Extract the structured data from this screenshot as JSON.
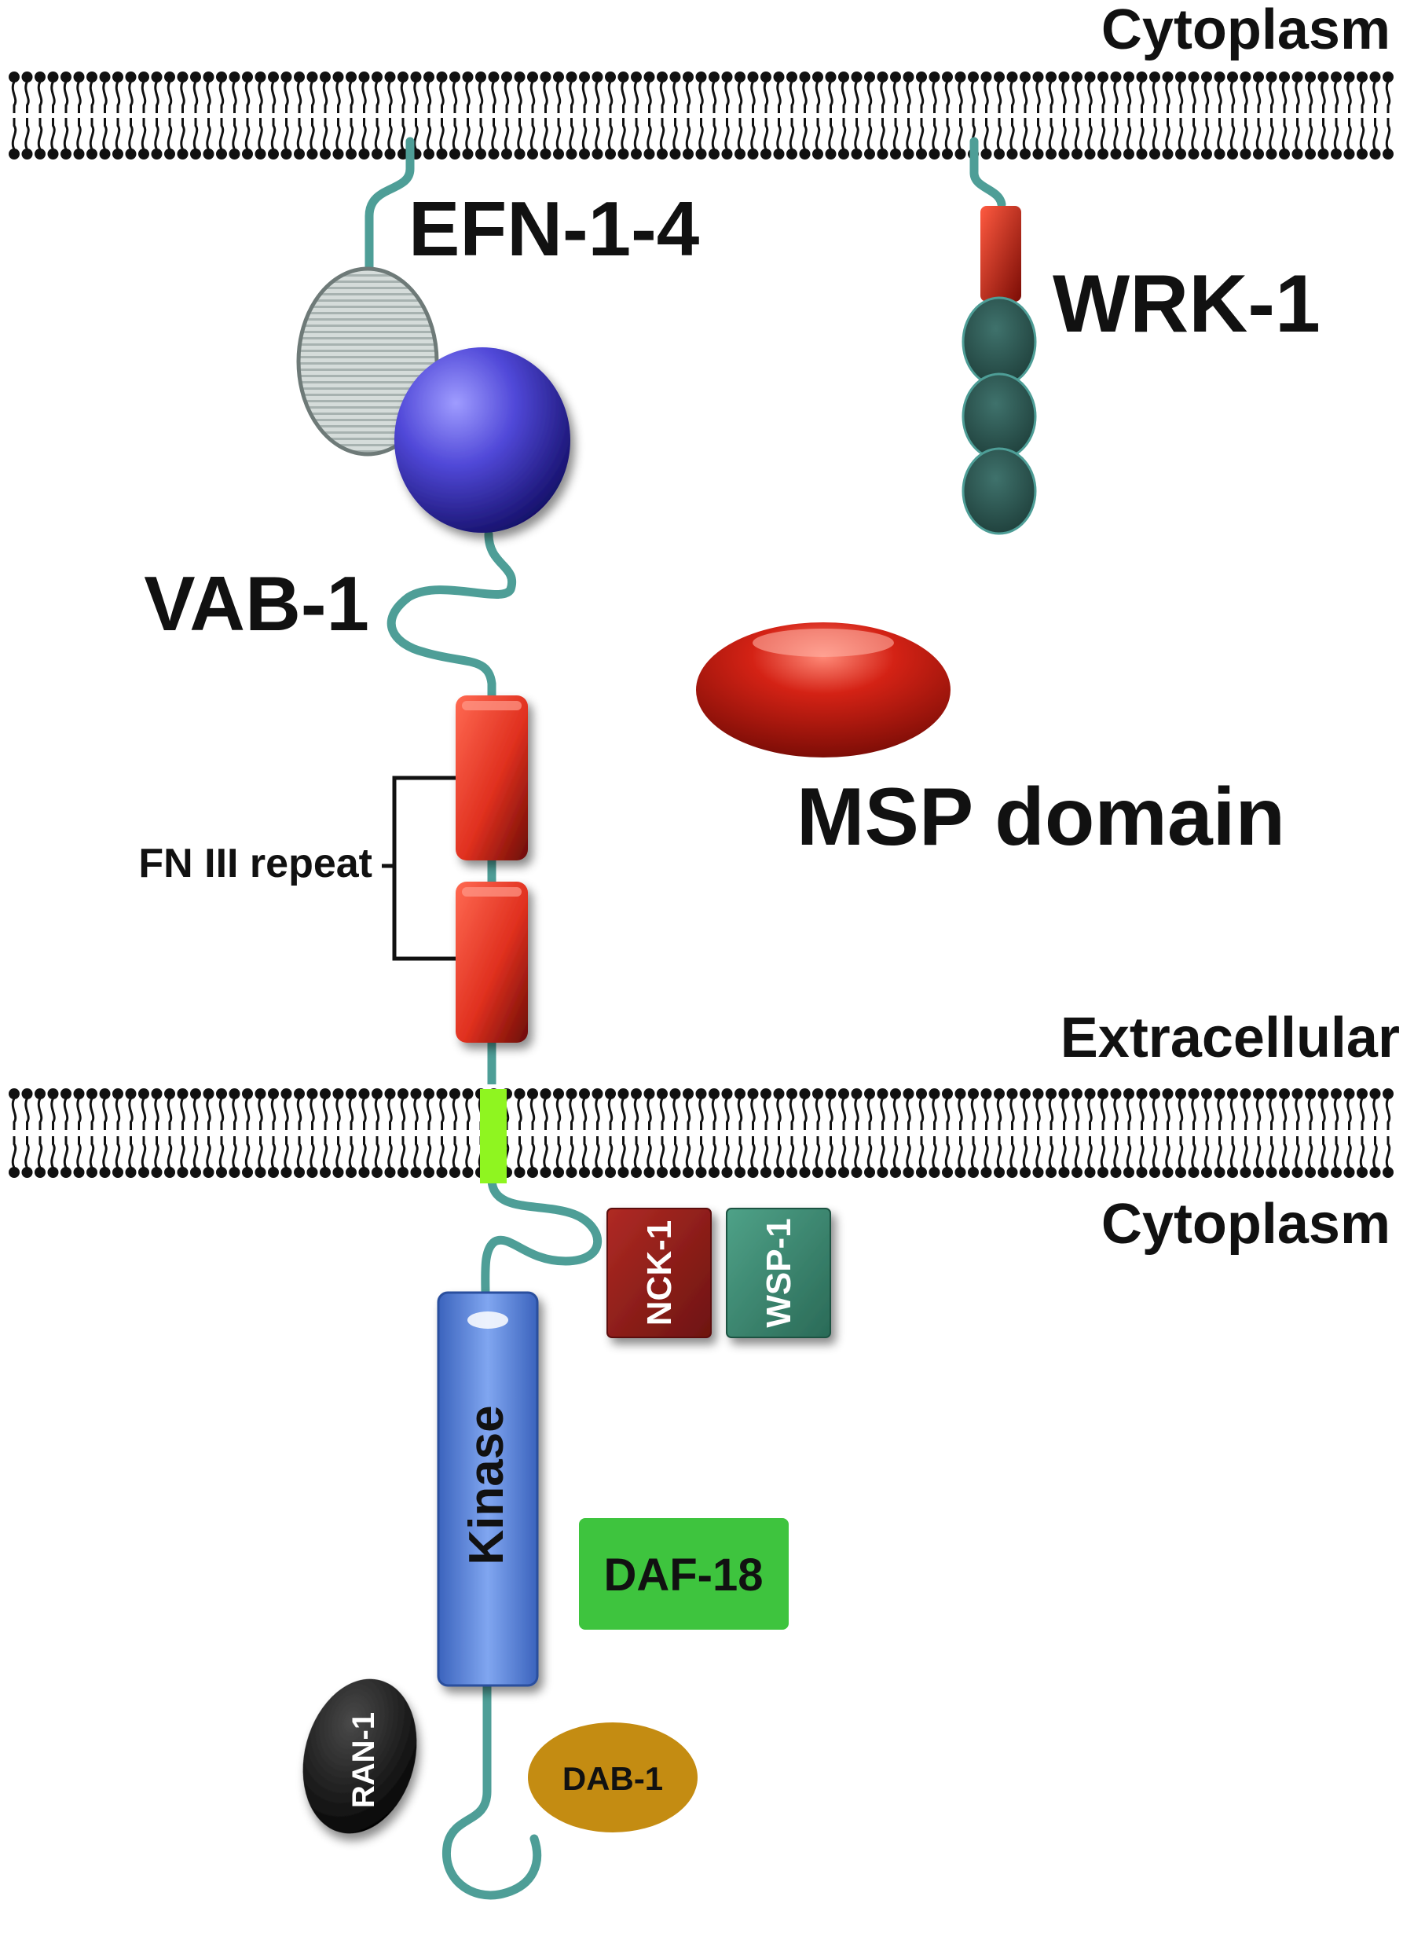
{
  "compartments": {
    "top": "Cytoplasm",
    "middle": "Extracellular",
    "bottom": "Cytoplasm"
  },
  "proteins": {
    "ligand": "EFN-1-4",
    "receptor": "VAB-1",
    "wrk": "WRK-1",
    "msp": "MSP domain",
    "fn3": "FN III repeat",
    "kinase": "Kinase",
    "nck": "NCK-1",
    "wsp": "WSP-1",
    "daf": "DAF-18",
    "ran": "RAN-1",
    "dab": "DAB-1"
  },
  "colors": {
    "linker": "#4e9e97",
    "msp_red": "#d42215",
    "fn_red": "#e0301f",
    "tm_green": "#8ff520",
    "kinase_blue": "#5a86e0",
    "ephrin_grey": "#b8c2c0",
    "receptor_purple": "#5048d8",
    "wrk_teal": "#2e5a55",
    "nck_red": "#951e1a",
    "wsp_green": "#3d8a72",
    "daf_green": "#3ec43e",
    "ran_black": "#151515",
    "dab_gold": "#c48c12"
  }
}
